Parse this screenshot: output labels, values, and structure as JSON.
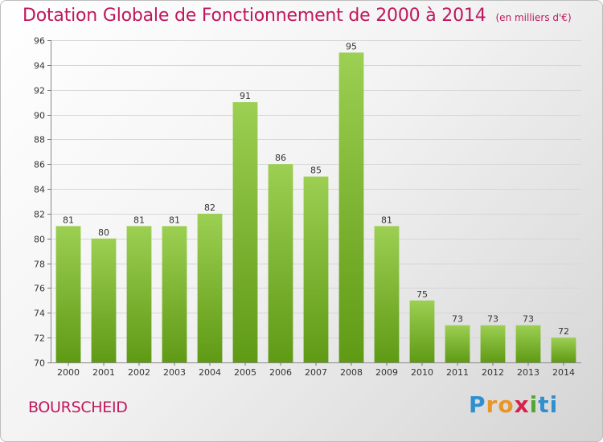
{
  "header": {
    "title": "Dotation Globale de Fonctionnement de 2000 à 2014",
    "unit": "(en milliers d'€)"
  },
  "footer": {
    "commune": "BOURSCHEID",
    "brand": [
      "P",
      "r",
      "o",
      "x",
      "i",
      "ti"
    ]
  },
  "colors": {
    "title": "#c0175d",
    "bar_top": "#9ccf52",
    "bar_bottom": "#5f9a15",
    "grid": "#d6d6d6",
    "axis_text": "#333333"
  },
  "chart_data": {
    "type": "bar",
    "title": "Dotation Globale de Fonctionnement de 2000 à 2014",
    "subtitle": "(en milliers d'€)",
    "xlabel": "",
    "ylabel": "",
    "categories": [
      "2000",
      "2001",
      "2002",
      "2003",
      "2004",
      "2005",
      "2006",
      "2007",
      "2008",
      "2009",
      "2010",
      "2011",
      "2012",
      "2013",
      "2014"
    ],
    "values": [
      81,
      80,
      81,
      81,
      82,
      91,
      86,
      85,
      95,
      81,
      75,
      73,
      73,
      73,
      72
    ],
    "ylim": [
      70,
      96
    ],
    "yticks": [
      70,
      72,
      74,
      76,
      78,
      80,
      82,
      84,
      86,
      88,
      90,
      92,
      94,
      96
    ],
    "grid": true,
    "data_labels": true
  }
}
